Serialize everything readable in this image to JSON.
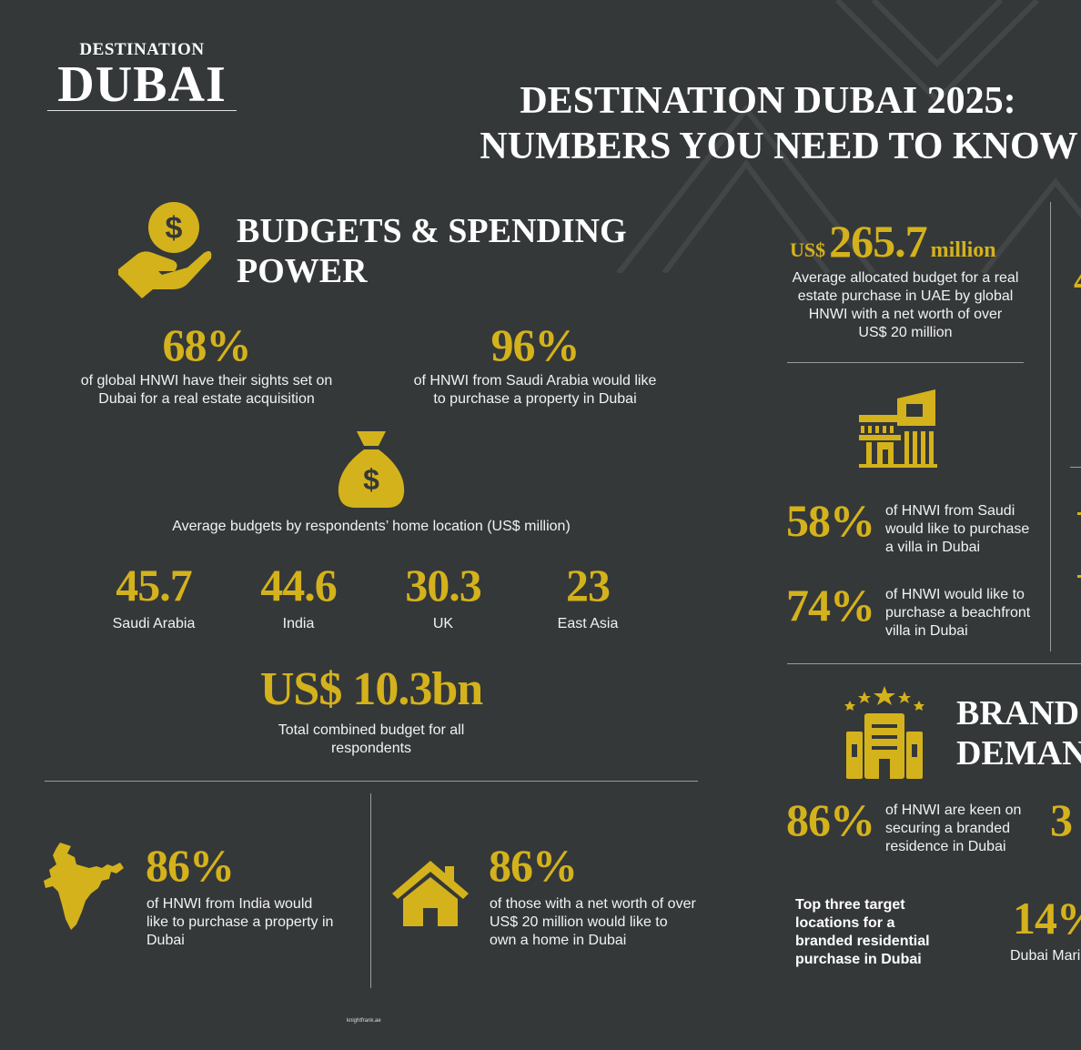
{
  "logo": {
    "top": "DESTINATION",
    "main": "DUBAI"
  },
  "title": {
    "line1": "DESTINATION DUBAI 2025:",
    "line2": "NUMBERS YOU NEED TO KNOW"
  },
  "budgets": {
    "heading1": "BUDGETS & SPENDING",
    "heading2": "POWER",
    "stat1": {
      "value": "68%",
      "text1": "of global HNWI have their sights set on",
      "text2": "Dubai for a real estate acquisition"
    },
    "stat2": {
      "value": "96%",
      "text1": "of HNWI from Saudi Arabia would like",
      "text2": "to purchase a property in Dubai"
    },
    "avg_label": "Average budgets by respondents’ home location (US$ million)",
    "locations": [
      {
        "value": "45.7",
        "name": "Saudi Arabia"
      },
      {
        "value": "44.6",
        "name": "India"
      },
      {
        "value": "30.3",
        "name": "UK"
      },
      {
        "value": "23",
        "name": "East Asia"
      }
    ],
    "total": {
      "value": "US$ 10.3bn",
      "text1": "Total combined budget for all",
      "text2": "respondents"
    }
  },
  "india": {
    "value": "86%",
    "text1": "of HNWI from India would",
    "text2": "like to purchase a property in",
    "text3": "Dubai"
  },
  "networth": {
    "value": "86%",
    "text1": "of those with a net worth of over",
    "text2": "US$ 20 million would like to",
    "text3": "own a home in Dubai"
  },
  "footer": "knightfrank.ae",
  "right": {
    "budget": {
      "prefix": "US$",
      "value": "265.7",
      "suffix": "million",
      "text1": "Average allocated budget for a real",
      "text2": "estate purchase in UAE by global",
      "text3": "HNWI with a net worth of over",
      "text4": "US$ 20 million"
    },
    "villa": {
      "value": "58%",
      "text1": "of HNWI from Saudi",
      "text2": "would like to purchase",
      "text3": "a villa in Dubai"
    },
    "beach": {
      "value": "74%",
      "text1": "of HNWI would like to",
      "text2": "purchase a beachfront",
      "text3": "villa in Dubai"
    },
    "branded_heading1": "BRAND",
    "branded_heading2": "DEMAN",
    "branded": {
      "value": "86%",
      "text1": "of HNWI are keen on",
      "text2": "securing a branded",
      "text3": "residence in Dubai"
    },
    "partial_value": "3",
    "top3": {
      "line1": "Top three target",
      "line2": "locations for a",
      "line3": "branded residential",
      "line4": "purchase in Dubai"
    },
    "marina": {
      "value": "14%",
      "label": "Dubai Mari"
    }
  },
  "colors": {
    "background": "#353839",
    "accent": "#d4b21c"
  }
}
